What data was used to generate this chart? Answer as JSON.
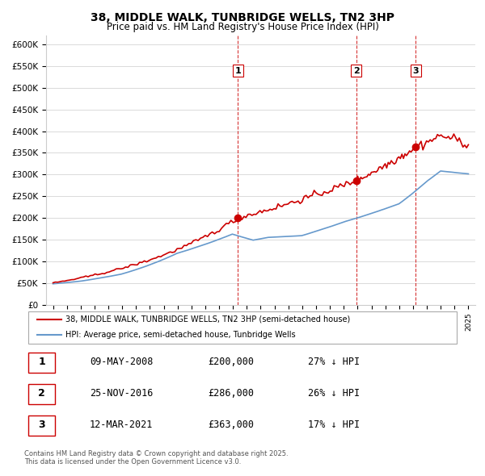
{
  "title": "38, MIDDLE WALK, TUNBRIDGE WELLS, TN2 3HP",
  "subtitle": "Price paid vs. HM Land Registry's House Price Index (HPI)",
  "transactions": [
    {
      "date_num": 2008.36,
      "price": 200000,
      "label": "1"
    },
    {
      "date_num": 2016.9,
      "price": 286000,
      "label": "2"
    },
    {
      "date_num": 2021.19,
      "price": 363000,
      "label": "3"
    }
  ],
  "transaction_dates_str": [
    "09-MAY-2008",
    "25-NOV-2016",
    "12-MAR-2021"
  ],
  "transaction_prices_str": [
    "£200,000",
    "£286,000",
    "£363,000"
  ],
  "transaction_hpi_str": [
    "27% ↓ HPI",
    "26% ↓ HPI",
    "17% ↓ HPI"
  ],
  "legend_line1": "38, MIDDLE WALK, TUNBRIDGE WELLS, TN2 3HP (semi-detached house)",
  "legend_line2": "HPI: Average price, semi-detached house, Tunbridge Wells",
  "footer": "Contains HM Land Registry data © Crown copyright and database right 2025.\nThis data is licensed under the Open Government Licence v3.0.",
  "red_color": "#cc0000",
  "blue_color": "#6699cc",
  "dashed_color": "#cc0000",
  "ylim": [
    0,
    620000
  ],
  "xlim_start": 1994.5,
  "xlim_end": 2025.5,
  "yticks": [
    0,
    50000,
    100000,
    150000,
    200000,
    250000,
    300000,
    350000,
    400000,
    450000,
    500000,
    550000,
    600000
  ]
}
